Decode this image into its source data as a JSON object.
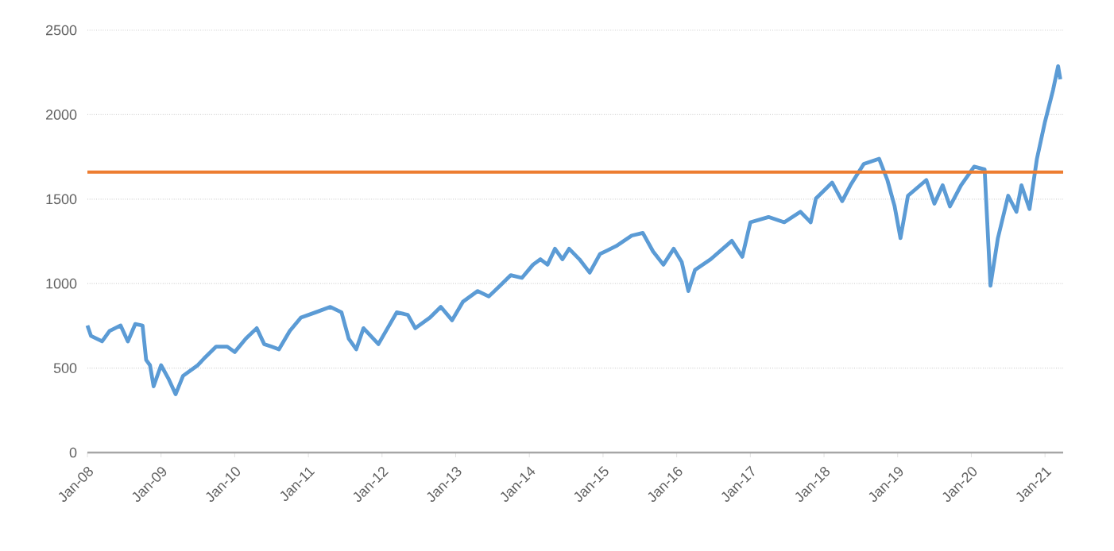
{
  "chart_data": {
    "type": "line",
    "x": [
      "2008-01-01",
      "2008-01-19",
      "2008-03-14",
      "2008-04-20",
      "2008-06-14",
      "2008-07-20",
      "2008-08-26",
      "2008-10-01",
      "2008-10-19",
      "2008-11-07",
      "2008-11-25",
      "2009-01-01",
      "2009-02-06",
      "2009-03-14",
      "2009-04-20",
      "2009-07-02",
      "2009-08-08",
      "2009-10-01",
      "2009-11-25",
      "2010-01-01",
      "2010-02-25",
      "2010-04-20",
      "2010-05-27",
      "2010-07-02",
      "2010-08-08",
      "2010-10-01",
      "2010-11-25",
      "2011-02-06",
      "2011-04-20",
      "2011-06-14",
      "2011-07-20",
      "2011-08-26",
      "2011-10-01",
      "2011-12-14",
      "2012-03-14",
      "2012-05-08",
      "2012-06-14",
      "2012-08-26",
      "2012-10-19",
      "2012-12-14",
      "2013-02-06",
      "2013-04-20",
      "2013-06-14",
      "2013-08-08",
      "2013-10-01",
      "2013-11-25",
      "2014-01-19",
      "2014-02-25",
      "2014-04-01",
      "2014-05-08",
      "2014-06-14",
      "2014-07-17",
      "2014-09-06",
      "2014-10-27",
      "2014-12-17",
      "2015-03-07",
      "2015-05-23",
      "2015-07-17",
      "2015-09-06",
      "2015-10-27",
      "2015-12-17",
      "2016-01-26",
      "2016-02-28",
      "2016-04-01",
      "2016-06-18",
      "2016-10-01",
      "2016-11-22",
      "2017-01-01",
      "2017-04-01",
      "2017-06-18",
      "2017-09-06",
      "2017-10-27",
      "2017-11-22",
      "2018-02-10",
      "2018-04-01",
      "2018-05-12",
      "2018-07-17",
      "2018-10-01",
      "2018-11-11",
      "2018-12-17",
      "2019-01-15",
      "2019-02-21",
      "2019-05-23",
      "2019-07-02",
      "2019-08-12",
      "2019-09-17",
      "2019-11-11",
      "2020-01-15",
      "2020-03-07",
      "2020-04-05",
      "2020-05-12",
      "2020-07-02",
      "2020-08-12",
      "2020-09-06",
      "2020-10-16",
      "2020-11-22",
      "2021-01-01",
      "2021-02-10",
      "2021-03-07",
      "2021-03-18"
    ],
    "series": [
      {
        "color": "#5b9bd5",
        "values": [
          752,
          690,
          658,
          720,
          752,
          658,
          761,
          752,
          548,
          517,
          392,
          517,
          439,
          345,
          454,
          517,
          564,
          627,
          627,
          595,
          674,
          736,
          642,
          627,
          611,
          720,
          799,
          830,
          862,
          830,
          674,
          611,
          736,
          642,
          830,
          815,
          736,
          799,
          862,
          783,
          893,
          956,
          924,
          987,
          1050,
          1034,
          1112,
          1144,
          1112,
          1206,
          1144,
          1206,
          1144,
          1065,
          1175,
          1222,
          1284,
          1300,
          1190,
          1112,
          1206,
          1128,
          956,
          1081,
          1144,
          1253,
          1159,
          1363,
          1394,
          1363,
          1425,
          1363,
          1504,
          1598,
          1488,
          1582,
          1708,
          1739,
          1613,
          1457,
          1269,
          1520,
          1613,
          1473,
          1582,
          1457,
          1582,
          1692,
          1676,
          987,
          1269,
          1520,
          1425,
          1582,
          1441,
          1739,
          1958,
          2146,
          2287,
          2209
        ]
      }
    ],
    "xlim": [
      "2008-01-01",
      "2021-04-01"
    ],
    "xticks": [
      {
        "value": "2008-01",
        "label": "Jan-08"
      },
      {
        "value": "2009-01",
        "label": "Jan-09"
      },
      {
        "value": "2010-01",
        "label": "Jan-10"
      },
      {
        "value": "2011-01",
        "label": "Jan-11"
      },
      {
        "value": "2012-01",
        "label": "Jan-12"
      },
      {
        "value": "2013-01",
        "label": "Jan-13"
      },
      {
        "value": "2014-01",
        "label": "Jan-14"
      },
      {
        "value": "2015-01",
        "label": "Jan-15"
      },
      {
        "value": "2016-01",
        "label": "Jan-16"
      },
      {
        "value": "2017-01",
        "label": "Jan-17"
      },
      {
        "value": "2018-01",
        "label": "Jan-18"
      },
      {
        "value": "2019-01",
        "label": "Jan-19"
      },
      {
        "value": "2020-01",
        "label": "Jan-20"
      },
      {
        "value": "2021-01",
        "label": "Jan-21"
      }
    ],
    "ylim": [
      0,
      2500
    ],
    "yticks": [
      0,
      500,
      1000,
      1500,
      2000,
      2500
    ],
    "grid": "y",
    "ref_lines": [
      {
        "axis": "y",
        "value": 1660,
        "color": "#ed7d31"
      }
    ]
  }
}
